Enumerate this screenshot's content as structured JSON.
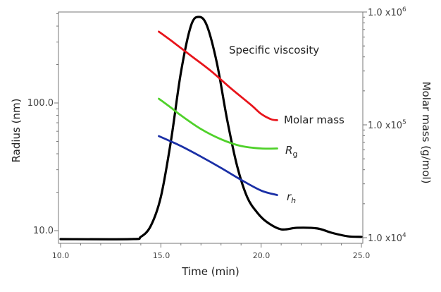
{
  "chart_data": {
    "type": "line",
    "title": "",
    "xlabel": "Time (min)",
    "ylabel_left": "Radius (nm)",
    "ylabel_right": "Molar mass (g/mol)",
    "xlim": [
      10,
      25
    ],
    "ylim_left": [
      8.5,
      700
    ],
    "ylim_right": [
      9400,
      1000000
    ],
    "yscale": "log",
    "x_ticks": [
      "10.0",
      "15.0",
      "20.0",
      "25.0"
    ],
    "x_tick_values": [
      10,
      15,
      20,
      25
    ],
    "y_left_ticks": [
      "10.0",
      "100.0"
    ],
    "y_left_tick_values": [
      10,
      100
    ],
    "y_right_ticks": [
      {
        "base": "1.0 x10",
        "exp": "4",
        "value": 10000
      },
      {
        "base": "1.0 x10",
        "exp": "5",
        "value": 100000
      },
      {
        "base": "1.0 x10",
        "exp": "6",
        "value": 1000000
      }
    ],
    "series": [
      {
        "name": "Specific viscosity",
        "label": "Specific viscosity",
        "color": "#000000",
        "axis": "relative",
        "x": [
          10,
          13.5,
          14,
          14.5,
          15,
          15.5,
          16,
          16.5,
          16.9,
          17.3,
          17.8,
          18.3,
          18.8,
          19.3,
          19.8,
          20.3,
          21,
          21.8,
          22.8,
          23.5,
          24.3,
          25
        ],
        "y": [
          0,
          0,
          0.01,
          0.06,
          0.19,
          0.44,
          0.75,
          0.96,
          1.0,
          0.96,
          0.79,
          0.54,
          0.33,
          0.19,
          0.12,
          0.076,
          0.044,
          0.051,
          0.048,
          0.029,
          0.013,
          0.01
        ]
      },
      {
        "name": "Molar mass",
        "label": "Molar mass",
        "color": "#e8141b",
        "axis": "right",
        "x": [
          14.9,
          15.5,
          16.5,
          17.5,
          18.5,
          19.5,
          20,
          20.5,
          20.8
        ],
        "y": [
          670000,
          560000,
          410000,
          300000,
          210000,
          150000,
          125000,
          112000,
          110000
        ]
      },
      {
        "name": "Rg",
        "label_main": "R",
        "label_sub": "g",
        "color": "#4fd12a",
        "axis": "left",
        "x": [
          14.9,
          15.5,
          16,
          17,
          18,
          19,
          20,
          20.8
        ],
        "y": [
          108,
          92,
          80,
          62.5,
          52,
          46,
          44,
          44
        ]
      },
      {
        "name": "rh",
        "label_main": "r",
        "label_sub": "h",
        "color": "#1a2fa6",
        "axis": "left",
        "x": [
          14.9,
          15.5,
          16,
          17,
          18,
          19,
          20,
          20.8
        ],
        "y": [
          55,
          50,
          46,
          38,
          31,
          25,
          20.6,
          19
        ]
      }
    ],
    "grid": false,
    "legend": "inline labels at right end of curves"
  }
}
